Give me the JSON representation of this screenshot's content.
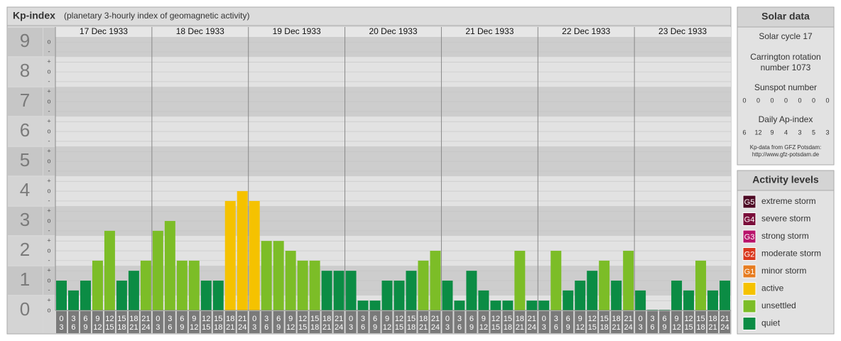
{
  "chart_data": {
    "type": "bar",
    "title": "Kp-index",
    "subtitle": "(planetary 3-hourly index of geomagnetic activity)",
    "days": [
      "17 Dec 1933",
      "18 Dec 1933",
      "19 Dec 1933",
      "20 Dec 1933",
      "21 Dec 1933",
      "22 Dec 1933",
      "23 Dec 1933"
    ],
    "slots": [
      [
        0,
        3
      ],
      [
        3,
        6
      ],
      [
        6,
        9
      ],
      [
        9,
        12
      ],
      [
        12,
        15
      ],
      [
        15,
        18
      ],
      [
        18,
        21
      ],
      [
        21,
        24
      ]
    ],
    "values": [
      1,
      0.67,
      1,
      1.67,
      2.67,
      1,
      1.33,
      1.67,
      2.67,
      3,
      1.67,
      1.67,
      1,
      1,
      3.67,
      4,
      3.67,
      2.33,
      2.33,
      2,
      1.67,
      1.67,
      1.33,
      1.33,
      1.33,
      0.33,
      0.33,
      1,
      1,
      1.33,
      1.67,
      2,
      1,
      0.33,
      1.33,
      0.67,
      0.33,
      0.33,
      2,
      0.33,
      0.33,
      2,
      0.67,
      1,
      1.33,
      1.67,
      1,
      2,
      0.67,
      0,
      0,
      1,
      0.67,
      1.67,
      0.67,
      1
    ],
    "colors": [
      "#0b8c44",
      "#0b8c44",
      "#0b8c44",
      "#7cbd27",
      "#7cbd27",
      "#0b8c44",
      "#0b8c44",
      "#7cbd27",
      "#7cbd27",
      "#7cbd27",
      "#7cbd27",
      "#7cbd27",
      "#0b8c44",
      "#0b8c44",
      "#f5c200",
      "#f5c200",
      "#f5c200",
      "#7cbd27",
      "#7cbd27",
      "#7cbd27",
      "#7cbd27",
      "#7cbd27",
      "#0b8c44",
      "#0b8c44",
      "#0b8c44",
      "#0b8c44",
      "#0b8c44",
      "#0b8c44",
      "#0b8c44",
      "#0b8c44",
      "#7cbd27",
      "#7cbd27",
      "#0b8c44",
      "#0b8c44",
      "#0b8c44",
      "#0b8c44",
      "#0b8c44",
      "#0b8c44",
      "#7cbd27",
      "#0b8c44",
      "#0b8c44",
      "#7cbd27",
      "#0b8c44",
      "#0b8c44",
      "#0b8c44",
      "#7cbd27",
      "#0b8c44",
      "#7cbd27",
      "#0b8c44",
      "#0b8c44",
      "#0b8c44",
      "#0b8c44",
      "#0b8c44",
      "#7cbd27",
      "#0b8c44",
      "#0b8c44"
    ],
    "ylim": [
      0,
      9.17
    ],
    "yticks": [
      0,
      1,
      2,
      3,
      4,
      5,
      6,
      7,
      8,
      9
    ],
    "minor_yticks": [
      {
        "value": 0,
        "label": "o"
      },
      {
        "value": 0.33,
        "label": "+"
      },
      {
        "value": 0.67,
        "label": "-"
      },
      {
        "value": 1,
        "label": "o"
      },
      {
        "value": 1.33,
        "label": "+"
      },
      {
        "value": 1.67,
        "label": "-"
      },
      {
        "value": 2,
        "label": "o"
      },
      {
        "value": 2.33,
        "label": "+"
      },
      {
        "value": 2.67,
        "label": "-"
      },
      {
        "value": 3,
        "label": "o"
      },
      {
        "value": 3.33,
        "label": "+"
      },
      {
        "value": 3.67,
        "label": "-"
      },
      {
        "value": 4,
        "label": "o"
      },
      {
        "value": 4.33,
        "label": "+"
      },
      {
        "value": 4.67,
        "label": "-"
      },
      {
        "value": 5,
        "label": "o"
      },
      {
        "value": 5.33,
        "label": "+"
      },
      {
        "value": 5.67,
        "label": "-"
      },
      {
        "value": 6,
        "label": "o"
      },
      {
        "value": 6.33,
        "label": "+"
      },
      {
        "value": 6.67,
        "label": "-"
      },
      {
        "value": 7,
        "label": "o"
      },
      {
        "value": 7.33,
        "label": "+"
      },
      {
        "value": 7.67,
        "label": "-"
      },
      {
        "value": 8,
        "label": "o"
      },
      {
        "value": 8.33,
        "label": "+"
      },
      {
        "value": 8.67,
        "label": "-"
      },
      {
        "value": 9,
        "label": "o"
      }
    ],
    "grid": true
  },
  "solar_data": {
    "title": "Solar data",
    "solar_cycle": "Solar cycle 17",
    "carrington": [
      "Carrington rotation",
      "number 1073"
    ],
    "sunspot_title": "Sunspot number",
    "sunspot_numbers": [
      0,
      0,
      0,
      0,
      0,
      0,
      0
    ],
    "ap_title": "Daily Ap-index",
    "ap_values": [
      6,
      12,
      9,
      4,
      3,
      5,
      3
    ],
    "source": [
      "Kp-data from GFZ Potsdam:",
      "http://www.gfz-potsdam.de"
    ]
  },
  "activity_levels": {
    "title": "Activity levels",
    "items": [
      {
        "badge": "G5",
        "label": "extreme storm",
        "color": "#4d0a24"
      },
      {
        "badge": "G4",
        "label": "severe storm",
        "color": "#7a0e3a"
      },
      {
        "badge": "G3",
        "label": "strong storm",
        "color": "#b8136b"
      },
      {
        "badge": "G2",
        "label": "moderate storm",
        "color": "#d9381e"
      },
      {
        "badge": "G1",
        "label": "minor storm",
        "color": "#e67c21"
      },
      {
        "label": "active",
        "color": "#f5c200"
      },
      {
        "label": "unsettled",
        "color": "#7cbd27"
      },
      {
        "label": "quiet",
        "color": "#0b8c44"
      }
    ]
  }
}
